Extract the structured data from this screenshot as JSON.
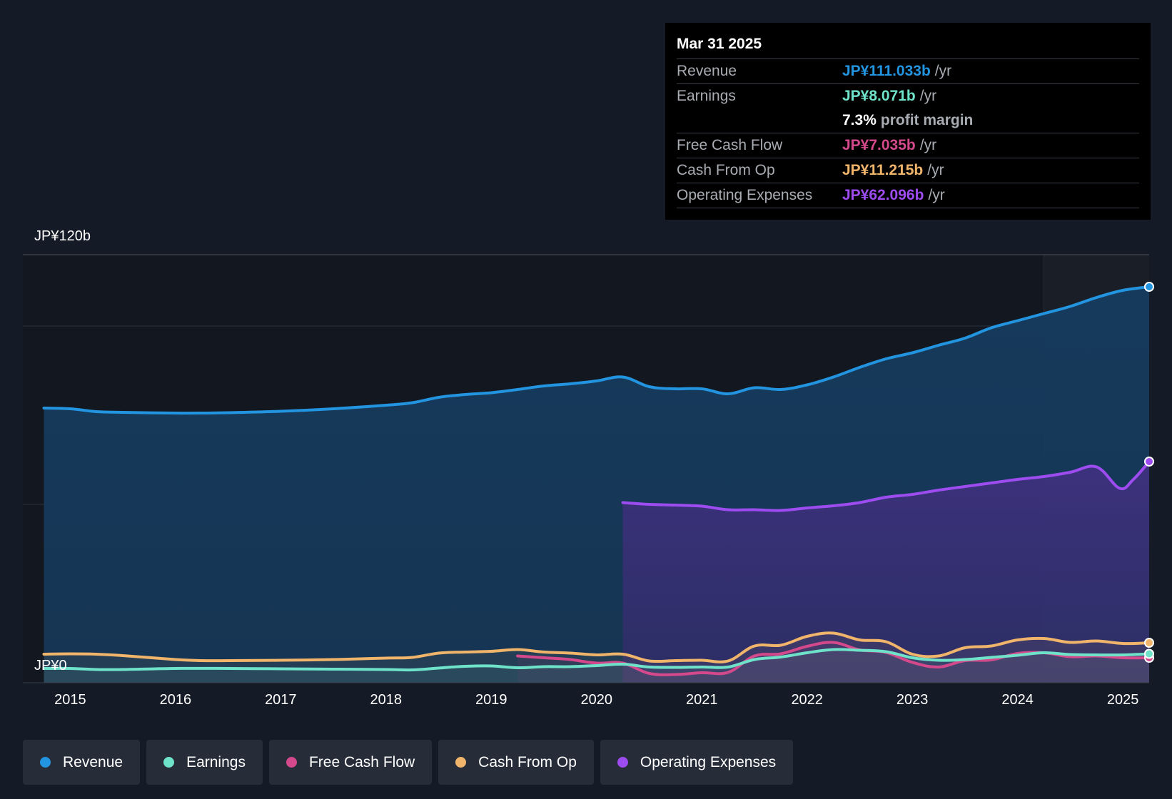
{
  "tooltip": {
    "date": "Mar 31 2025",
    "rows": [
      {
        "label": "Revenue",
        "value": "JP¥111.033b",
        "unit": "/yr",
        "color": "#2394df"
      },
      {
        "label": "Earnings",
        "value": "JP¥8.071b",
        "unit": "/yr",
        "color": "#6fe3c9"
      },
      {
        "label": "",
        "value": "7.3%",
        "unit": "profit margin",
        "color": "#ffffff"
      },
      {
        "label": "Free Cash Flow",
        "value": "JP¥7.035b",
        "unit": "/yr",
        "color": "#d4498b"
      },
      {
        "label": "Cash From Op",
        "value": "JP¥11.215b",
        "unit": "/yr",
        "color": "#f0b56b"
      },
      {
        "label": "Operating Expenses",
        "value": "JP¥62.096b",
        "unit": "/yr",
        "color": "#9d4cf0"
      }
    ]
  },
  "legend": [
    {
      "label": "Revenue",
      "color": "#2394df"
    },
    {
      "label": "Earnings",
      "color": "#6fe3c9"
    },
    {
      "label": "Free Cash Flow",
      "color": "#d4498b"
    },
    {
      "label": "Cash From Op",
      "color": "#f0b56b"
    },
    {
      "label": "Operating Expenses",
      "color": "#9d4cf0"
    }
  ],
  "chart_data": {
    "type": "area",
    "title": "",
    "xlabel": "",
    "ylabel": "",
    "y_top_label": "JP¥120b",
    "y_bottom_label": "JP¥0",
    "ylim": [
      0,
      120
    ],
    "xlim": [
      2014.55,
      2025.25
    ],
    "x_ticks": [
      {
        "value": 2015,
        "label": "2015"
      },
      {
        "value": 2016,
        "label": "2016"
      },
      {
        "value": 2017,
        "label": "2017"
      },
      {
        "value": 2018,
        "label": "2018"
      },
      {
        "value": 2019,
        "label": "2019"
      },
      {
        "value": 2020,
        "label": "2020"
      },
      {
        "value": 2021,
        "label": "2021"
      },
      {
        "value": 2022,
        "label": "2022"
      },
      {
        "value": 2023,
        "label": "2023"
      },
      {
        "value": 2024,
        "label": "2024"
      },
      {
        "value": 2025,
        "label": "2025"
      }
    ],
    "gridlines": [
      120,
      100,
      50
    ],
    "highlight_from": 2024.25,
    "series": [
      {
        "name": "Revenue",
        "color": "#2394df",
        "fill": true,
        "x": [
          2014.75,
          2015.0,
          2015.25,
          2015.5,
          2016.0,
          2016.25,
          2016.5,
          2017.0,
          2017.5,
          2018.0,
          2018.25,
          2018.5,
          2018.75,
          2019.0,
          2019.25,
          2019.5,
          2019.75,
          2020.0,
          2020.25,
          2020.5,
          2020.75,
          2021.0,
          2021.25,
          2021.5,
          2021.75,
          2022.0,
          2022.25,
          2022.5,
          2022.75,
          2023.0,
          2023.25,
          2023.5,
          2023.75,
          2024.0,
          2024.25,
          2024.5,
          2024.75,
          2025.0,
          2025.25
        ],
        "values": [
          77,
          76.8,
          76,
          75.8,
          75.6,
          75.6,
          75.7,
          76.1,
          76.8,
          77.8,
          78.5,
          80,
          80.8,
          81.3,
          82.2,
          83.2,
          83.8,
          84.6,
          85.7,
          83,
          82.4,
          82.4,
          81,
          82.7,
          82.2,
          83.5,
          85.7,
          88.4,
          90.8,
          92.5,
          94.6,
          96.6,
          99.5,
          101.5,
          103.5,
          105.5,
          108,
          110,
          111
        ]
      },
      {
        "name": "Operating Expenses",
        "color": "#9d4cf0",
        "fill": true,
        "x": [
          2020.25,
          2020.5,
          2020.75,
          2021.0,
          2021.25,
          2021.5,
          2021.75,
          2022.0,
          2022.25,
          2022.5,
          2022.75,
          2023.0,
          2023.25,
          2023.5,
          2023.75,
          2024.0,
          2024.25,
          2024.5,
          2024.75,
          2024.97,
          2025.1,
          2025.25
        ],
        "values": [
          50.5,
          50,
          49.8,
          49.5,
          48.5,
          48.5,
          48.3,
          49,
          49.6,
          50.5,
          52,
          52.8,
          54,
          55,
          56,
          57,
          57.8,
          59,
          60.5,
          54.5,
          57,
          62
        ]
      },
      {
        "name": "Cash From Op",
        "color": "#f0b56b",
        "fill": false,
        "x": [
          2014.75,
          2015.0,
          2015.25,
          2015.5,
          2016.0,
          2016.25,
          2016.5,
          2017.0,
          2017.5,
          2018.0,
          2018.25,
          2018.5,
          2018.75,
          2019.0,
          2019.25,
          2019.5,
          2019.75,
          2020.0,
          2020.25,
          2020.5,
          2020.75,
          2021.0,
          2021.25,
          2021.5,
          2021.75,
          2022.0,
          2022.25,
          2022.5,
          2022.75,
          2023.0,
          2023.25,
          2023.5,
          2023.75,
          2024.0,
          2024.25,
          2024.5,
          2024.75,
          2025.0,
          2025.25
        ],
        "values": [
          8,
          8.1,
          8,
          7.6,
          6.5,
          6.2,
          6.2,
          6.3,
          6.5,
          6.9,
          7.1,
          8.3,
          8.6,
          8.8,
          9.3,
          8.6,
          8.3,
          7.8,
          8,
          6.1,
          6.2,
          6.3,
          6.1,
          10.3,
          10.5,
          13,
          13.9,
          12,
          11.5,
          8,
          7.5,
          9.8,
          10.3,
          12,
          12.4,
          11.3,
          11.7,
          11,
          11.2
        ]
      },
      {
        "name": "Free Cash Flow",
        "color": "#d4498b",
        "fill": false,
        "x": [
          2019.25,
          2019.5,
          2019.75,
          2020.0,
          2020.25,
          2020.5,
          2020.75,
          2021.0,
          2021.25,
          2021.5,
          2021.75,
          2022.0,
          2022.25,
          2022.5,
          2022.75,
          2023.0,
          2023.25,
          2023.5,
          2023.75,
          2024.0,
          2024.25,
          2024.5,
          2024.75,
          2025.0,
          2025.25
        ],
        "values": [
          7.5,
          7,
          6.5,
          5.5,
          5.5,
          2.6,
          2.3,
          2.8,
          2.9,
          7.5,
          8.1,
          10.2,
          11.3,
          9.2,
          8.5,
          5.7,
          4.4,
          6.2,
          6.4,
          8.2,
          8.4,
          7.3,
          7.5,
          7,
          7
        ]
      },
      {
        "name": "Earnings",
        "color": "#6fe3c9",
        "fill": false,
        "x": [
          2014.75,
          2015.0,
          2015.25,
          2015.5,
          2016.0,
          2016.5,
          2017.0,
          2017.5,
          2018.0,
          2018.25,
          2018.5,
          2018.75,
          2019.0,
          2019.25,
          2019.5,
          2019.75,
          2020.0,
          2020.25,
          2020.5,
          2020.75,
          2021.0,
          2021.25,
          2021.5,
          2021.75,
          2022.0,
          2022.25,
          2022.5,
          2022.75,
          2023.0,
          2023.25,
          2023.5,
          2023.75,
          2024.0,
          2024.25,
          2024.5,
          2024.75,
          2025.0,
          2025.25
        ],
        "values": [
          4,
          4,
          3.7,
          3.7,
          4,
          4,
          3.9,
          3.8,
          3.7,
          3.6,
          4.1,
          4.6,
          4.7,
          4.2,
          4.5,
          4.5,
          4.8,
          5.2,
          4.4,
          4.3,
          4.4,
          4.4,
          6.5,
          7.2,
          8.4,
          9.3,
          9.1,
          8.7,
          7,
          6.3,
          6.5,
          7.1,
          7.7,
          8.4,
          7.9,
          7.8,
          7.8,
          8.1
        ]
      }
    ]
  }
}
